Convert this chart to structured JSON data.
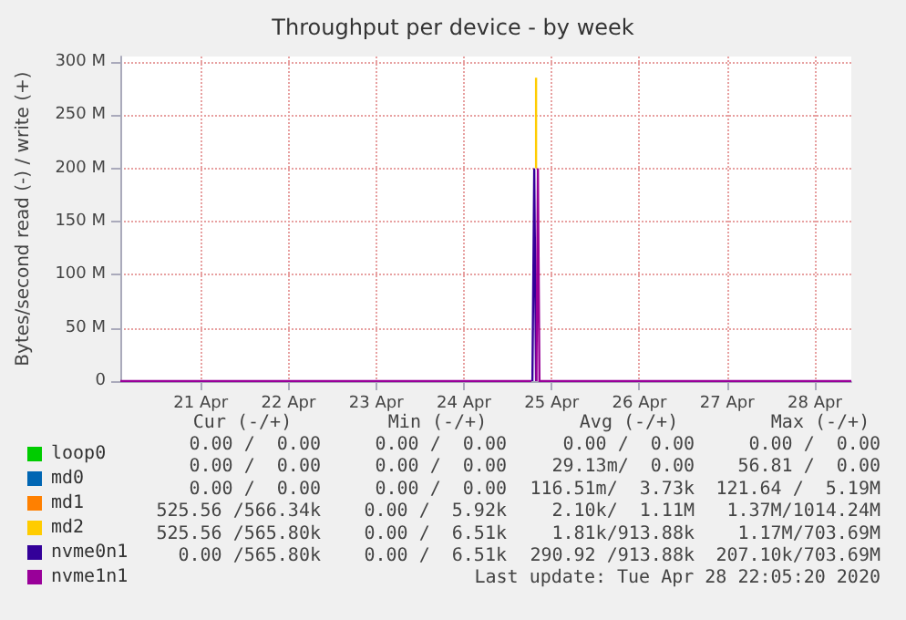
{
  "chart_data": {
    "type": "line",
    "title": "Throughput per device - by week",
    "ylabel": "Bytes/second read (-) / write (+)",
    "xlim": [
      "2020-04-20T14:00",
      "2020-04-28T22:00"
    ],
    "xticks": [
      {
        "value": "2020-04-21T12:00",
        "label": "21 Apr"
      },
      {
        "value": "2020-04-22T12:00",
        "label": "22 Apr"
      },
      {
        "value": "2020-04-23T12:00",
        "label": "23 Apr"
      },
      {
        "value": "2020-04-24T12:00",
        "label": "24 Apr"
      },
      {
        "value": "2020-04-25T12:00",
        "label": "25 Apr"
      },
      {
        "value": "2020-04-26T12:00",
        "label": "26 Apr"
      },
      {
        "value": "2020-04-27T12:00",
        "label": "27 Apr"
      },
      {
        "value": "2020-04-28T12:00",
        "label": "28 Apr"
      }
    ],
    "ylim": [
      0,
      305
    ],
    "yticks": [
      {
        "value": 0,
        "label": "0"
      },
      {
        "value": 50,
        "label": "50 M"
      },
      {
        "value": 100,
        "label": "100 M"
      },
      {
        "value": 150,
        "label": "150 M"
      },
      {
        "value": 200,
        "label": "200 M"
      },
      {
        "value": 250,
        "label": "250 M"
      },
      {
        "value": 300,
        "label": "300 M"
      }
    ],
    "series": [
      {
        "name": "loop0",
        "color": "#00cc00"
      },
      {
        "name": "md0",
        "color": "#0066b3"
      },
      {
        "name": "md1",
        "color": "#ff8000"
      },
      {
        "name": "md2",
        "color": "#ffcc00",
        "x": [
          "2020-04-25T07:45",
          "2020-04-25T07:45"
        ],
        "values": [
          200,
          285
        ]
      },
      {
        "name": "nvme0n1",
        "color": "#330099",
        "x": [
          "2020-04-25T06:45",
          "2020-04-25T07:15",
          "2020-04-25T07:45"
        ],
        "values": [
          0,
          199,
          0
        ]
      },
      {
        "name": "nvme1n1",
        "color": "#990099",
        "x": [
          "2020-04-20T14:00",
          "2020-04-25T06:30",
          "2020-04-25T06:50",
          "2020-04-25T07:50",
          "2020-04-25T08:15",
          "2020-04-25T08:40",
          "2020-04-28T22:00"
        ],
        "values": [
          0,
          0,
          null,
          0,
          199,
          0,
          0
        ]
      }
    ],
    "annotations": [
      "Cur (-/+)",
      "Min (-/+)",
      "Avg (-/+)",
      "Max (-/+)",
      "0.00 /  0.00",
      "0.00 /  0.00",
      "0.00 /  0.00",
      "0.00 /  0.00",
      "0.00 /  0.00",
      "0.00 /  0.00",
      "29.13m/  0.00",
      "56.81 /  0.00",
      "0.00 /  0.00",
      "0.00 /  0.00",
      "116.51m/  3.73k",
      "121.64 /  5.19M",
      "525.56 /566.34k",
      "0.00 /  5.92k",
      "2.10k/  1.11M",
      "1.37M/1014.24M",
      "525.56 /565.80k",
      "0.00 /  6.51k",
      "1.81k/913.88k",
      "1.17M/703.69M",
      "0.00 /565.80k",
      "0.00 /  6.51k",
      "290.92 /913.88k",
      "207.10k/703.69M",
      "Last update: Tue Apr 28 22:05:20 2020"
    ],
    "grid": true,
    "legend": "bottom left",
    "marker": "none"
  }
}
